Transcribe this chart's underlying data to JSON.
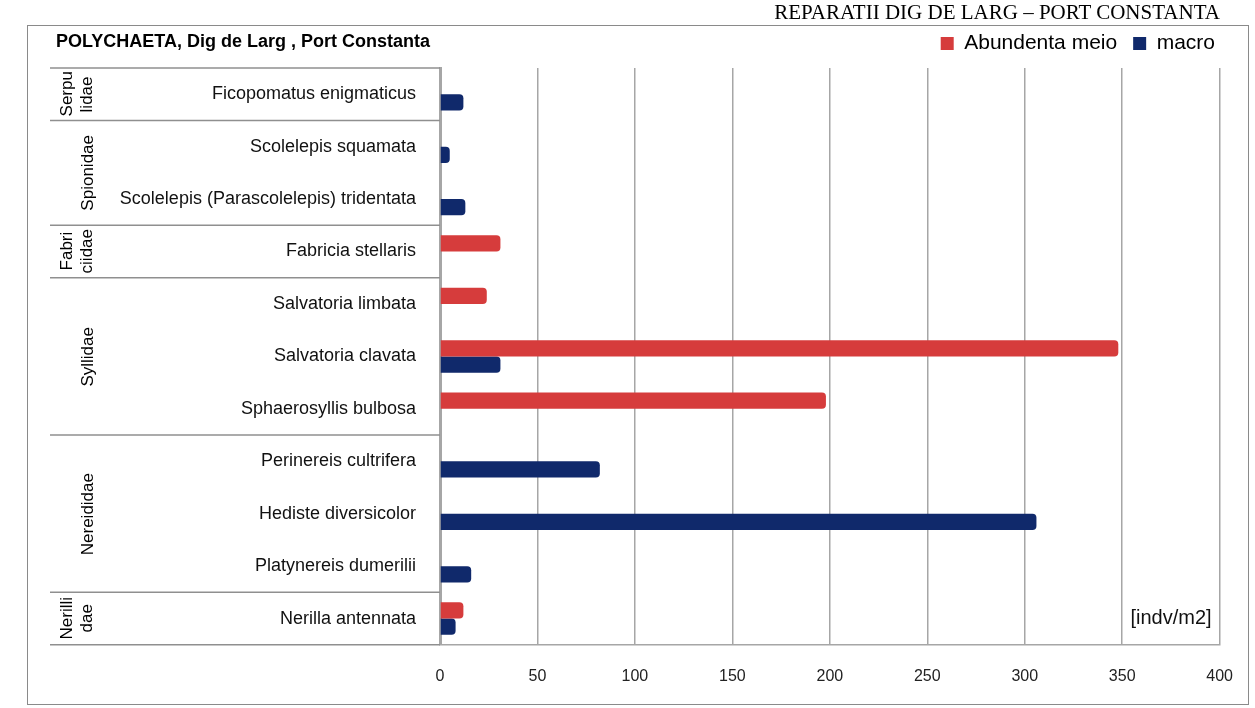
{
  "chart_data": {
    "type": "bar",
    "orientation": "horizontal",
    "title": "POLYCHAETA, Dig de Larg , Port Constanta",
    "xlabel": "[indv/m2]",
    "categories": [
      "Ficopomatus enigmaticus",
      "Scolelepis squamata",
      "Scolelepis (Parascolelepis) tridentata",
      "Fabricia stellaris",
      "Salvatoria limbata",
      "Salvatoria clavata",
      "Sphaerosyllis bulbosa",
      "Perinereis cultrifera",
      "Hediste diversicolor",
      "Platynereis dumerilii",
      "Nerilla antennata"
    ],
    "series": [
      {
        "name": "Abundenta meio",
        "color": "#d63c3c",
        "values": [
          null,
          null,
          null,
          31,
          24,
          348,
          198,
          null,
          null,
          null,
          12
        ]
      },
      {
        "name": "macro",
        "color": "#10296b",
        "values": [
          12,
          5,
          13,
          null,
          null,
          31,
          null,
          82,
          306,
          16,
          8
        ]
      }
    ],
    "xlim": [
      0,
      400
    ],
    "xticks": [
      0,
      50,
      100,
      150,
      200,
      250,
      300,
      350,
      400
    ],
    "grid": "x",
    "legend": "top right",
    "annotations": [
      "REPARATII DIG DE LARG – PORT CONSTANTA",
      "Serpu lidae",
      "Spionidae",
      "Fabri ciidae",
      "Syllidae",
      "Nereididae",
      "Nerilli dae"
    ]
  }
}
